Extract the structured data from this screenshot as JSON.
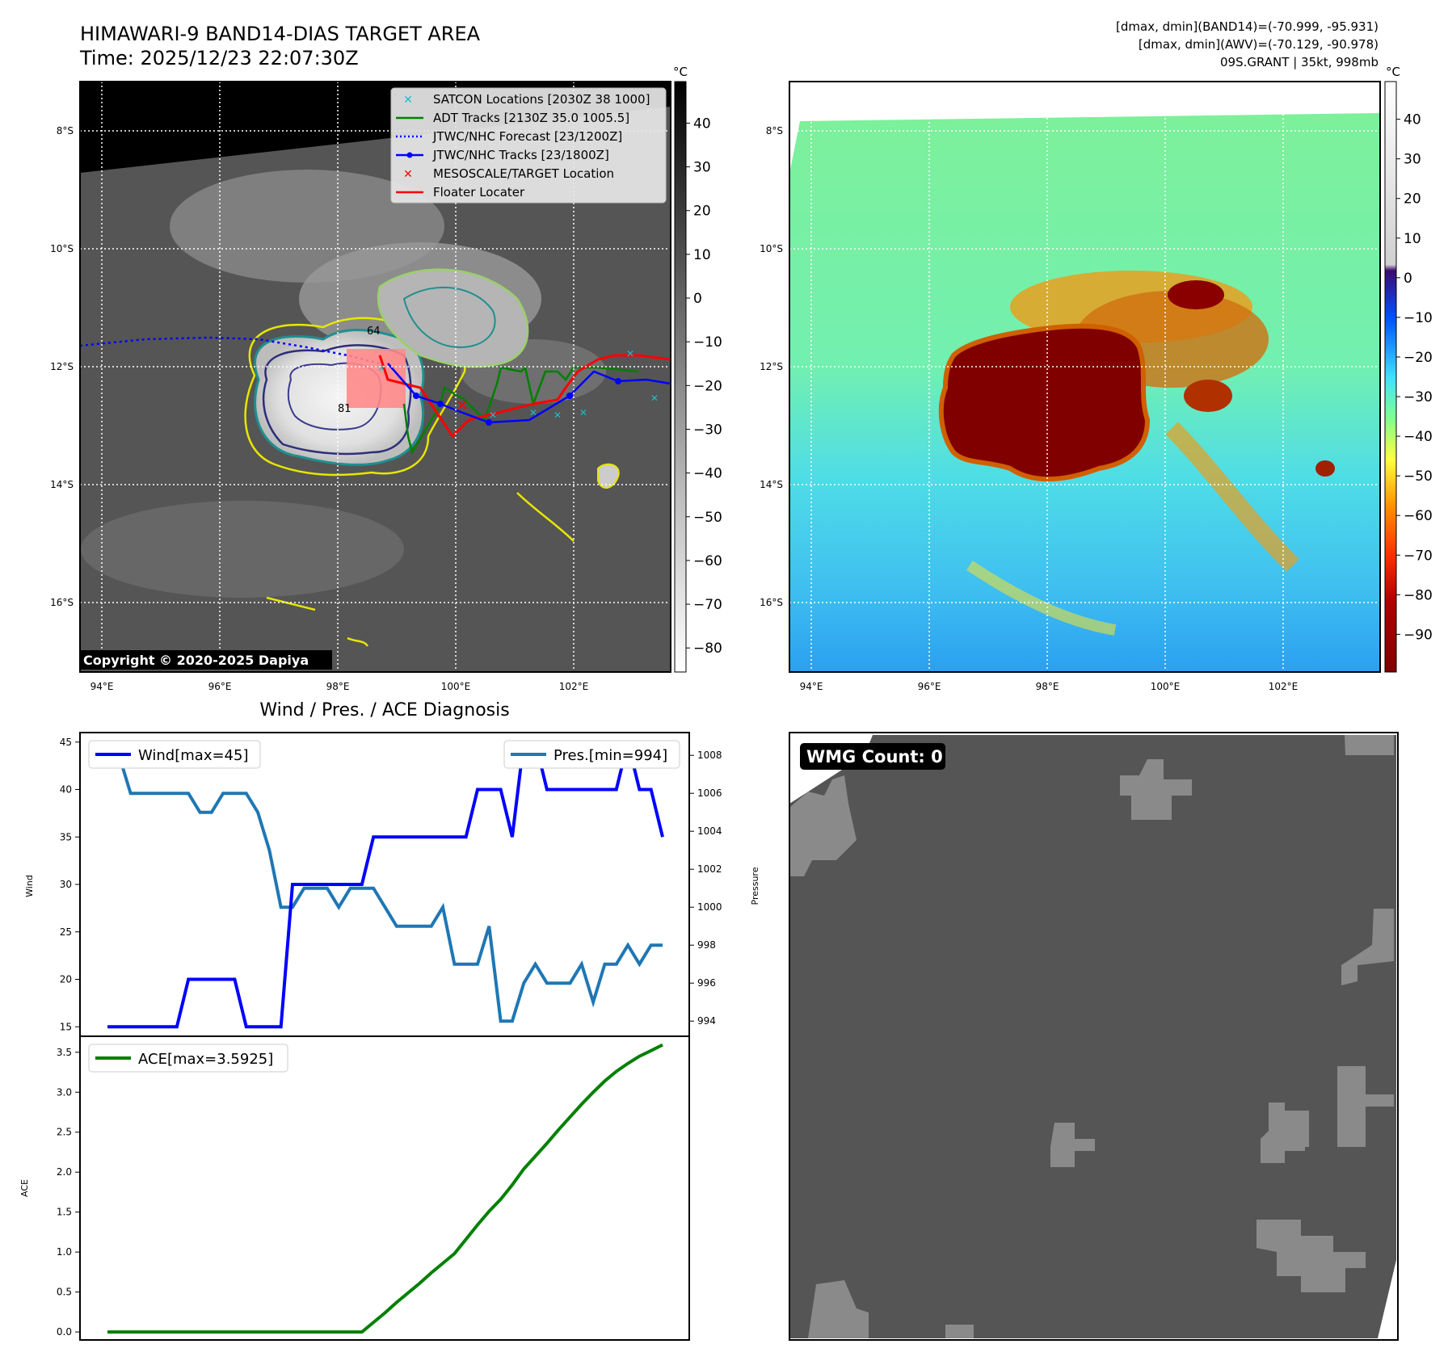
{
  "header": {
    "title": "HIMAWARI-9 BAND14-DIAS TARGET AREA",
    "time": "Time: 2025/12/23 22:07:30Z",
    "info_line1": "[dmax, dmin](BAND14)=(-70.999, -95.931)",
    "info_line2": "[dmax, dmin](AWV)=(-70.129, -90.978)",
    "info_line3": "09S.GRANT | 35kt, 998mb"
  },
  "map": {
    "lat_ticks": [
      "8°S",
      "10°S",
      "12°S",
      "14°S",
      "16°S"
    ],
    "lon_ticks": [
      "94°E",
      "96°E",
      "98°E",
      "100°E",
      "102°E"
    ],
    "lat_values": [
      -8,
      -10,
      -12,
      -14,
      -16
    ],
    "lon_values": [
      94,
      96,
      98,
      100,
      102
    ],
    "copyright": "Copyright © 2020-2025 Dapiya",
    "contour_labels": [
      "64",
      "81"
    ],
    "legend": [
      {
        "label": "SATCON Locations [2030Z 38 1000]",
        "color": "#17becf",
        "style": "x"
      },
      {
        "label": "ADT Tracks [2130Z 35.0 1005.5]",
        "color": "#008000",
        "style": "line"
      },
      {
        "label": "JTWC/NHC Forecast [23/1200Z]",
        "color": "#0000ff",
        "style": "dotted"
      },
      {
        "label": "JTWC/NHC Tracks [23/1800Z]",
        "color": "#0000ff",
        "style": "line-dot"
      },
      {
        "label": "MESOSCALE/TARGET Location",
        "color": "#ff0000",
        "style": "x"
      },
      {
        "label": "Floater Locater",
        "color": "#ff0000",
        "style": "line"
      }
    ]
  },
  "colorbar_left": {
    "unit": "°C",
    "ticks": [
      "40",
      "30",
      "20",
      "10",
      "0",
      "−10",
      "−20",
      "−30",
      "−40",
      "−50",
      "−60",
      "−70",
      "−80"
    ]
  },
  "colorbar_right": {
    "unit": "°C",
    "ticks": [
      "40",
      "30",
      "20",
      "10",
      "0",
      "−10",
      "−20",
      "−30",
      "−40",
      "−50",
      "−60",
      "−70",
      "−80",
      "−90"
    ]
  },
  "diagnosis": {
    "title": "Wind / Pres. / ACE Diagnosis",
    "wind_legend": "Wind[max=45]",
    "pres_legend": "Pres.[min=994]",
    "ace_legend": "ACE[max=3.5925]",
    "wind_ylabel": "Wind",
    "pres_ylabel": "Pressure",
    "ace_ylabel": "ACE",
    "wind_color": "#0000ff",
    "pres_color": "#1f77b4",
    "ace_color": "#008000",
    "wmg": "WMG Count: 0"
  },
  "chart_data": [
    {
      "type": "line",
      "x": [
        0,
        1,
        2,
        3,
        4,
        5,
        6,
        7,
        8,
        9,
        10,
        11,
        12,
        13,
        14,
        15,
        16,
        17,
        18,
        19,
        20,
        21,
        22,
        23,
        24,
        25,
        26,
        27,
        28,
        29,
        30,
        31,
        32,
        33,
        34,
        35,
        36,
        37,
        38,
        39,
        40,
        41,
        42,
        43,
        44,
        45,
        46,
        47,
        48
      ],
      "series": [
        {
          "name": "Wind[max=45]",
          "values": [
            15,
            15,
            15,
            15,
            15,
            15,
            15,
            20,
            20,
            20,
            20,
            20,
            15,
            15,
            15,
            15,
            30,
            30,
            30,
            30,
            30,
            30,
            30,
            35,
            35,
            35,
            35,
            35,
            35,
            35,
            35,
            35,
            40,
            40,
            40,
            35,
            45,
            45,
            40,
            40,
            40,
            40,
            40,
            40,
            40,
            45,
            40,
            40,
            35
          ]
        },
        {
          "name": "Pres.[min=994]",
          "values": [
            1008,
            1008,
            1006,
            1006,
            1006,
            1006,
            1006,
            1006,
            1005,
            1005,
            1006,
            1006,
            1006,
            1005,
            1003,
            1000,
            1000,
            1001,
            1001,
            1001,
            1000,
            1001,
            1001,
            1001,
            1000,
            999,
            999,
            999,
            999,
            1000,
            997,
            997,
            997,
            999,
            994,
            994,
            996,
            997,
            996,
            996,
            996,
            997,
            995,
            997,
            997,
            998,
            997,
            998,
            998
          ]
        }
      ],
      "ylim_wind": [
        14,
        46
      ],
      "ylim_pres": [
        993.2,
        1009.2
      ],
      "wind_ticks": [
        15,
        20,
        25,
        30,
        35,
        40,
        45
      ],
      "pres_ticks": [
        994,
        996,
        998,
        1000,
        1002,
        1004,
        1006,
        1008
      ]
    },
    {
      "type": "line",
      "x": [
        0,
        1,
        2,
        3,
        4,
        5,
        6,
        7,
        8,
        9,
        10,
        11,
        12,
        13,
        14,
        15,
        16,
        17,
        18,
        19,
        20,
        21,
        22,
        23,
        24,
        25,
        26,
        27,
        28,
        29,
        30,
        31,
        32,
        33,
        34,
        35,
        36,
        37,
        38,
        39,
        40,
        41,
        42,
        43,
        44,
        45,
        46,
        47,
        48
      ],
      "series": [
        {
          "name": "ACE[max=3.5925]",
          "values": [
            0,
            0,
            0,
            0,
            0,
            0,
            0,
            0,
            0,
            0,
            0,
            0,
            0,
            0,
            0,
            0,
            0,
            0,
            0,
            0,
            0,
            0,
            0,
            0.12,
            0.24,
            0.37,
            0.49,
            0.61,
            0.74,
            0.86,
            0.98,
            1.16,
            1.34,
            1.51,
            1.66,
            1.84,
            2.04,
            2.2,
            2.36,
            2.53,
            2.69,
            2.85,
            3.0,
            3.14,
            3.26,
            3.36,
            3.45,
            3.52,
            3.5925
          ]
        }
      ],
      "ylim": [
        -0.1,
        3.7
      ],
      "ticks": [
        0.0,
        0.5,
        1.0,
        1.5,
        2.0,
        2.5,
        3.0,
        3.5
      ],
      "tick_labels": [
        "0.0",
        "0.5",
        "1.0",
        "1.5",
        "2.0",
        "2.5",
        "3.0",
        "3.5"
      ]
    }
  ]
}
